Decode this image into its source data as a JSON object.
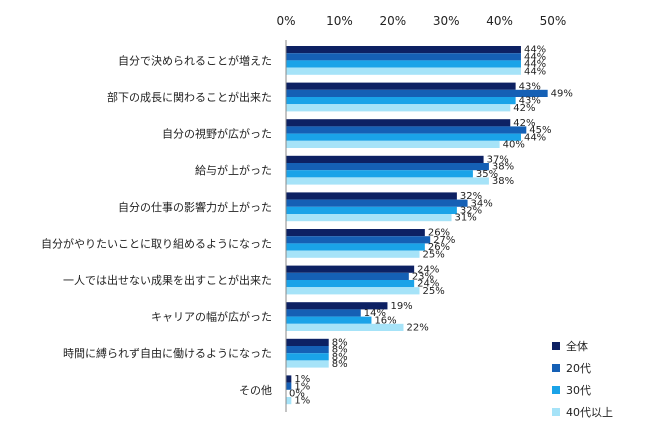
{
  "chart_data": {
    "type": "bar",
    "orientation": "horizontal",
    "title": "",
    "xlabel": "",
    "ylabel": "",
    "xlim": [
      0,
      50
    ],
    "x_ticks": [
      "0%",
      "10%",
      "20%",
      "30%",
      "40%",
      "50%"
    ],
    "x_tick_values": [
      0,
      10,
      20,
      30,
      40,
      50
    ],
    "x_axis_position": "top",
    "grid": false,
    "value_suffix": "%",
    "legend_position": "bottom-right",
    "categories": [
      "自分で決められることが増えた",
      "部下の成長に関わることが出来た",
      "自分の視野が広がった",
      "給与が上がった",
      "自分の仕事の影響力が上がった",
      "自分がやりたいことに取り組めるようになった",
      "一人では出せない成果を出すことが出来た",
      "キャリアの幅が広がった",
      "時間に縛られず自由に働けるようになった",
      "その他"
    ],
    "series": [
      {
        "name": "全体",
        "color": "#0d2163",
        "values": [
          44,
          43,
          42,
          37,
          32,
          26,
          24,
          19,
          8,
          1
        ]
      },
      {
        "name": "20代",
        "color": "#1560b5",
        "values": [
          44,
          49,
          45,
          38,
          34,
          27,
          23,
          14,
          8,
          1
        ]
      },
      {
        "name": "30代",
        "color": "#1aa3e8",
        "values": [
          44,
          43,
          44,
          35,
          32,
          26,
          24,
          16,
          8,
          0
        ]
      },
      {
        "name": "40代以上",
        "color": "#a6e3f8",
        "values": [
          44,
          42,
          40,
          38,
          31,
          25,
          25,
          22,
          8,
          1
        ]
      }
    ]
  }
}
